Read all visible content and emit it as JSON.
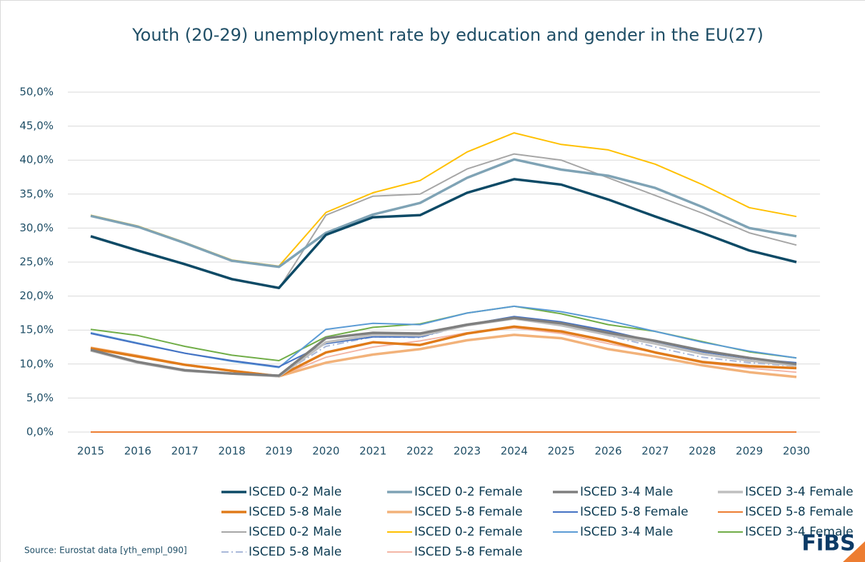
{
  "chart_data": {
    "type": "line",
    "title": "Youth (20-29) unemployment rate by education and gender in the EU(27)",
    "source": "Source: Eurostat data [yth_empl_090]",
    "logo": "FiBS",
    "categories": [
      "2015",
      "2016",
      "2017",
      "2018",
      "2019",
      "2020",
      "2021",
      "2022",
      "2023",
      "2024",
      "2025",
      "2026",
      "2027",
      "2028",
      "2029",
      "2030"
    ],
    "ylim": [
      0,
      50
    ],
    "yticks": [
      {
        "value": 0,
        "label": "0,0%"
      },
      {
        "value": 5,
        "label": "5,0%"
      },
      {
        "value": 10,
        "label": "10,0%"
      },
      {
        "value": 15,
        "label": "15,0%"
      },
      {
        "value": 20,
        "label": "20,0%"
      },
      {
        "value": 25,
        "label": "25,0%"
      },
      {
        "value": 30,
        "label": "30,0%"
      },
      {
        "value": 35,
        "label": "35,0%"
      },
      {
        "value": 40,
        "label": "40,0%"
      },
      {
        "value": 45,
        "label": "45,0%"
      },
      {
        "value": 50,
        "label": "50,0%"
      }
    ],
    "grid": true,
    "legend": "bottom",
    "series": [
      {
        "name": "ISCED 0-2 Male",
        "color": "#0d4a66",
        "style": "thick",
        "values": [
          28.8,
          26.7,
          24.7,
          22.5,
          21.2,
          29.0,
          31.6,
          31.9,
          35.2,
          37.2,
          36.4,
          34.2,
          31.7,
          29.3,
          26.7,
          25.0
        ]
      },
      {
        "name": "ISCED 0-2 Female",
        "color": "#7fa3b5",
        "style": "thick",
        "values": [
          31.8,
          30.2,
          27.8,
          25.2,
          24.3,
          29.3,
          32.0,
          33.7,
          37.4,
          40.1,
          38.6,
          37.7,
          35.9,
          33.1,
          30.0,
          28.8
        ]
      },
      {
        "name": "ISCED 3-4 Male",
        "color": "#7f7f7f",
        "style": "thick",
        "values": [
          12.1,
          10.3,
          9.1,
          8.6,
          8.3,
          13.8,
          14.6,
          14.5,
          15.8,
          16.8,
          16.0,
          14.6,
          13.4,
          12.0,
          10.9,
          10.0
        ]
      },
      {
        "name": "ISCED 3-4 Female",
        "color": "#bfbfbf",
        "style": "thick",
        "values": [
          12.0,
          10.2,
          9.0,
          8.6,
          8.2,
          13.2,
          14.3,
          14.2,
          15.7,
          16.7,
          15.7,
          14.3,
          13.0,
          11.5,
          10.5,
          9.8
        ]
      },
      {
        "name": "ISCED 5-8 Male",
        "color": "#e07b1a",
        "style": "thick",
        "values": [
          12.3,
          11.1,
          9.9,
          9.0,
          8.2,
          11.7,
          13.2,
          12.8,
          14.5,
          15.5,
          14.8,
          13.4,
          11.7,
          10.3,
          9.7,
          9.4
        ]
      },
      {
        "name": "ISCED 5-8 Female",
        "color": "#f2b27a",
        "style": "thick",
        "values": [
          12.4,
          11.2,
          9.9,
          9.0,
          8.2,
          10.2,
          11.4,
          12.2,
          13.5,
          14.3,
          13.8,
          12.2,
          11.1,
          9.8,
          8.8,
          8.1
        ]
      },
      {
        "name": "ISCED 5-8 Female",
        "color": "#4472c4",
        "style": "thin",
        "values": [
          14.5,
          13.0,
          11.6,
          10.5,
          9.6,
          13.0,
          14.0,
          14.0,
          15.8,
          17.0,
          16.2,
          14.9,
          13.3,
          11.8,
          10.8,
          10.2
        ]
      },
      {
        "name": "ISCED 5-8 Female",
        "color": "#ed7d31",
        "style": "thin",
        "values": [
          0,
          0,
          0,
          0,
          0,
          0,
          0,
          0,
          0,
          0,
          0,
          0,
          0,
          0,
          0,
          0
        ]
      },
      {
        "name": "ISCED 0-2 Male",
        "color": "#a6a6a6",
        "style": "thin",
        "values": [
          28.7,
          26.6,
          24.6,
          22.4,
          21.1,
          31.9,
          34.7,
          35.0,
          38.7,
          40.9,
          40.0,
          37.4,
          34.8,
          32.2,
          29.3,
          27.5
        ]
      },
      {
        "name": "ISCED 0-2 Female",
        "color": "#ffc000",
        "style": "thin",
        "values": [
          31.9,
          30.3,
          27.9,
          25.3,
          24.4,
          32.3,
          35.2,
          37.0,
          41.2,
          44.0,
          42.3,
          41.5,
          39.4,
          36.4,
          33.0,
          31.7
        ]
      },
      {
        "name": "ISCED 3-4 Male",
        "color": "#5b9bd5",
        "style": "thin",
        "values": [
          14.6,
          13.1,
          11.6,
          10.4,
          9.5,
          15.1,
          16.0,
          15.8,
          17.5,
          18.5,
          17.7,
          16.4,
          14.8,
          13.2,
          11.9,
          10.9
        ]
      },
      {
        "name": "ISCED 3-4 Female",
        "color": "#70ad47",
        "style": "thin",
        "values": [
          15.1,
          14.2,
          12.6,
          11.3,
          10.5,
          14.0,
          15.4,
          15.9,
          17.5,
          18.5,
          17.4,
          15.8,
          14.8,
          13.3,
          11.8,
          10.9
        ]
      },
      {
        "name": "ISCED 5-8 Male",
        "color": "#a9b8d9",
        "style": "dashdot",
        "values": [
          12.0,
          10.3,
          9.1,
          8.6,
          8.3,
          12.6,
          14.0,
          13.9,
          15.8,
          16.8,
          15.9,
          14.2,
          12.5,
          11.0,
          10.2,
          9.7
        ]
      },
      {
        "name": "ISCED 5-8 Female",
        "color": "#f4b6a6",
        "style": "thin",
        "values": [
          12.4,
          11.2,
          9.9,
          9.0,
          8.2,
          11.0,
          12.5,
          13.4,
          14.6,
          15.3,
          14.5,
          13.0,
          11.7,
          10.2,
          9.4,
          8.8
        ]
      }
    ]
  }
}
